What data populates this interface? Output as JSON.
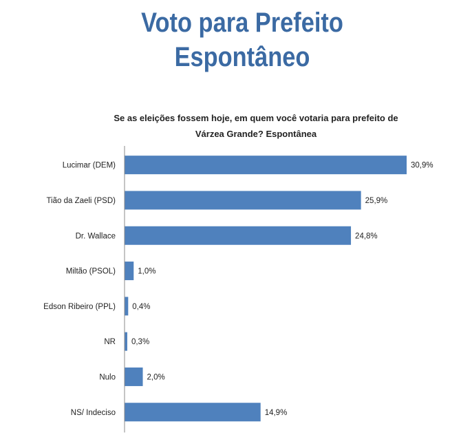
{
  "page_title": [
    "Voto para Prefeito",
    "Espontâneo"
  ],
  "chart_data": {
    "type": "bar",
    "orientation": "horizontal",
    "title": "Se as eleições fossem hoje, em quem você votaria para prefeito de Várzea Grande? Espontânea",
    "title_lines": [
      "Se as eleições fossem hoje, em quem você votaria para prefeito de",
      "Várzea Grande? Espontânea"
    ],
    "categories": [
      "Lucimar (DEM)",
      "Tião da Zaeli (PSD)",
      "Dr. Wallace",
      "Miltão (PSOL)",
      "Edson Ribeiro (PPL)",
      "NR",
      "Nulo",
      "NS/ Indeciso"
    ],
    "values": [
      30.9,
      25.9,
      24.8,
      1.0,
      0.4,
      0.3,
      2.0,
      14.9
    ],
    "labels": [
      "30,9%",
      "25,9%",
      "24,8%",
      "1,0%",
      "0,4%",
      "0,3%",
      "2,0%",
      "14,9%"
    ],
    "xlabel": "",
    "ylabel": "",
    "xlim": [
      0,
      30.9
    ],
    "grid": false,
    "legend": "none",
    "bar_color": "#4f81bd"
  }
}
